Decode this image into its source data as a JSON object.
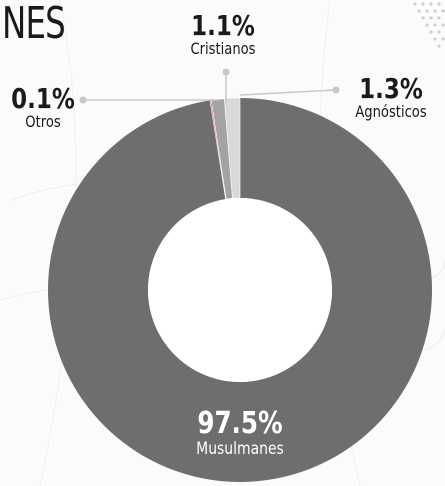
{
  "header": {
    "title_fragment": "NES"
  },
  "colors": {
    "musulmanes": "#6e6e6e",
    "cristianos": "#a3a3a3",
    "agnosticos": "#d9d9d9",
    "otros": "#e23a3a",
    "leader": "#c8c8c8",
    "hole": "#ffffff"
  },
  "chart_data": {
    "type": "pie",
    "donut": true,
    "slices": [
      {
        "name": "Musulmanes",
        "value": 97.5,
        "label": "97.5%",
        "color": "#6e6e6e"
      },
      {
        "name": "Otros",
        "value": 0.1,
        "label": "0.1%",
        "color": "#e23a3a"
      },
      {
        "name": "Cristianos",
        "value": 1.1,
        "label": "1.1%",
        "color": "#a3a3a3"
      },
      {
        "name": "Agnósticos",
        "value": 1.3,
        "label": "1.3%",
        "color": "#d9d9d9"
      }
    ],
    "labels": {
      "cristianos": {
        "pct": "1.1%",
        "name": "Cristianos"
      },
      "agnosticos": {
        "pct": "1.3%",
        "name": "Agnósticos"
      },
      "otros": {
        "pct": "0.1%",
        "name": "Otros"
      },
      "musulmanes": {
        "pct": "97.5%",
        "name": "Musulmanes"
      }
    }
  }
}
